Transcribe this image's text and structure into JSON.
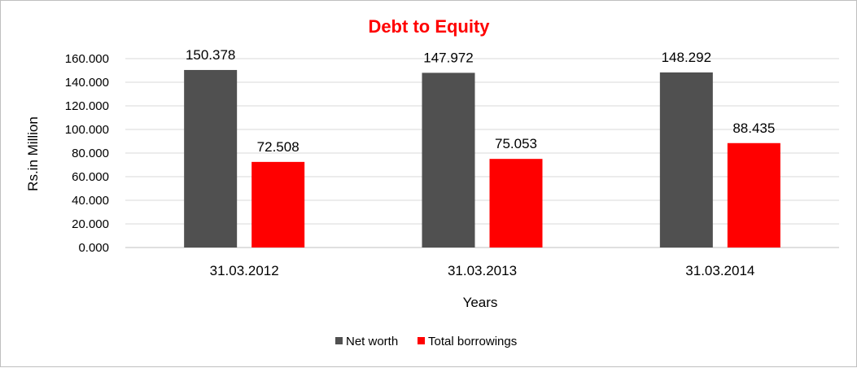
{
  "colors": {
    "title": "#ff0000",
    "gridline": "#d9d9d9",
    "axis": "#bfbfbf"
  },
  "chart_data": {
    "type": "bar",
    "title": "Debt to Equity",
    "xlabel": "Years",
    "ylabel": "Rs.in Million",
    "categories": [
      "31.03.2012",
      "31.03.2013",
      "31.03.2014"
    ],
    "series": [
      {
        "name": "Net worth",
        "color": "#505050",
        "values": [
          150.378,
          147.972,
          148.292
        ],
        "labels": [
          "150.378",
          "147.972",
          "148.292"
        ]
      },
      {
        "name": "Total borrowings",
        "color": "#ff0000",
        "values": [
          72.508,
          75.053,
          88.435
        ],
        "labels": [
          "72.508",
          "75.053",
          "88.435"
        ]
      }
    ],
    "ylim": [
      0,
      160
    ],
    "yticks": [
      0,
      20,
      40,
      60,
      80,
      100,
      120,
      140,
      160
    ],
    "ytick_labels": [
      "0.000",
      "20.000",
      "40.000",
      "60.000",
      "80.000",
      "100.000",
      "120.000",
      "140.000",
      "160.000"
    ],
    "grid": true,
    "legend_position": "bottom"
  }
}
